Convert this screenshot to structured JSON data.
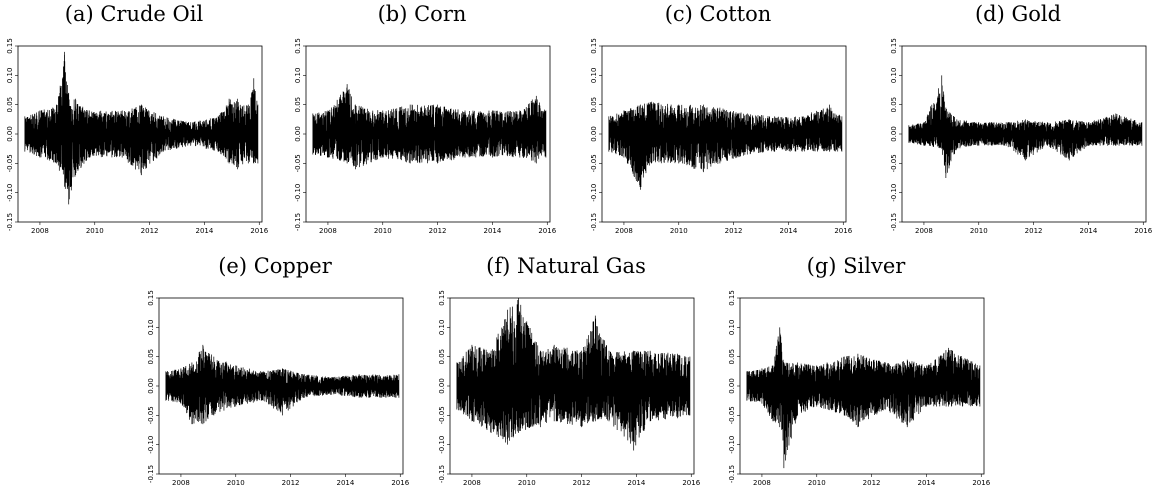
{
  "page": {
    "background": "#ffffff",
    "line_color": "#000000"
  },
  "chart_data": [
    {
      "type": "line",
      "title": "(a) Crude Oil",
      "xlabel": "",
      "ylabel": "",
      "xlim": [
        2007.2,
        2016.1
      ],
      "ylim": [
        -0.15,
        0.15
      ],
      "grid": false,
      "x_ticks": [
        "2008",
        "2010",
        "2012",
        "2014",
        "2016"
      ],
      "y_ticks": [
        "0.15",
        "0.10",
        "0.05",
        "0.00",
        "-0.05",
        "-0.10",
        "-0.15"
      ],
      "series": [
        {
          "x_range": [
            2007.45,
            2015.95
          ],
          "envelope": [
            [
              2007.45,
              0.03,
              -0.03
            ],
            [
              2008.0,
              0.04,
              -0.04
            ],
            [
              2008.6,
              0.05,
              -0.05
            ],
            [
              2008.9,
              0.14,
              -0.09
            ],
            [
              2009.05,
              0.07,
              -0.12
            ],
            [
              2009.3,
              0.06,
              -0.07
            ],
            [
              2009.8,
              0.04,
              -0.04
            ],
            [
              2011.0,
              0.04,
              -0.04
            ],
            [
              2011.7,
              0.05,
              -0.07
            ],
            [
              2012.5,
              0.03,
              -0.03
            ],
            [
              2013.5,
              0.02,
              -0.02
            ],
            [
              2014.5,
              0.03,
              -0.03
            ],
            [
              2014.9,
              0.06,
              -0.05
            ],
            [
              2015.2,
              0.06,
              -0.06
            ],
            [
              2015.6,
              0.05,
              -0.05
            ],
            [
              2015.8,
              0.095,
              -0.05
            ],
            [
              2015.95,
              0.05,
              -0.05
            ]
          ]
        }
      ]
    },
    {
      "type": "line",
      "title": "(b) Corn",
      "xlabel": "",
      "ylabel": "",
      "xlim": [
        2007.2,
        2016.1
      ],
      "ylim": [
        -0.15,
        0.15
      ],
      "grid": false,
      "x_ticks": [
        "2008",
        "2010",
        "2012",
        "2014",
        "2016"
      ],
      "y_ticks": [
        "0.15",
        "0.10",
        "0.05",
        "0.00",
        "-0.05",
        "-0.10",
        "-0.15"
      ],
      "series": [
        {
          "x_range": [
            2007.45,
            2015.95
          ],
          "envelope": [
            [
              2007.45,
              0.035,
              -0.035
            ],
            [
              2008.0,
              0.04,
              -0.04
            ],
            [
              2008.7,
              0.085,
              -0.05
            ],
            [
              2009.0,
              0.05,
              -0.06
            ],
            [
              2010.0,
              0.04,
              -0.04
            ],
            [
              2011.0,
              0.05,
              -0.05
            ],
            [
              2012.0,
              0.05,
              -0.05
            ],
            [
              2013.0,
              0.04,
              -0.04
            ],
            [
              2014.0,
              0.04,
              -0.04
            ],
            [
              2015.0,
              0.04,
              -0.04
            ],
            [
              2015.6,
              0.065,
              -0.05
            ],
            [
              2015.95,
              0.04,
              -0.04
            ]
          ]
        }
      ]
    },
    {
      "type": "line",
      "title": "(c) Cotton",
      "xlabel": "",
      "ylabel": "",
      "xlim": [
        2007.2,
        2016.1
      ],
      "ylim": [
        -0.15,
        0.15
      ],
      "grid": false,
      "x_ticks": [
        "2008",
        "2010",
        "2012",
        "2014",
        "2016"
      ],
      "y_ticks": [
        "0.15",
        "0.10",
        "0.05",
        "0.00",
        "-0.05",
        "-0.10",
        "-0.15"
      ],
      "series": [
        {
          "x_range": [
            2007.45,
            2015.95
          ],
          "envelope": [
            [
              2007.45,
              0.03,
              -0.03
            ],
            [
              2008.0,
              0.04,
              -0.04
            ],
            [
              2008.6,
              0.05,
              -0.095
            ],
            [
              2009.0,
              0.055,
              -0.05
            ],
            [
              2010.0,
              0.05,
              -0.05
            ],
            [
              2010.9,
              0.05,
              -0.065
            ],
            [
              2011.5,
              0.045,
              -0.05
            ],
            [
              2012.5,
              0.035,
              -0.035
            ],
            [
              2013.5,
              0.03,
              -0.03
            ],
            [
              2014.5,
              0.03,
              -0.03
            ],
            [
              2015.5,
              0.05,
              -0.03
            ],
            [
              2015.95,
              0.03,
              -0.03
            ]
          ]
        }
      ]
    },
    {
      "type": "line",
      "title": "(d) Gold",
      "xlabel": "",
      "ylabel": "",
      "xlim": [
        2007.2,
        2016.1
      ],
      "ylim": [
        -0.15,
        0.15
      ],
      "grid": false,
      "x_ticks": [
        "2008",
        "2010",
        "2012",
        "2014",
        "2016"
      ],
      "y_ticks": [
        "0.15",
        "0.10",
        "0.05",
        "0.00",
        "-0.05",
        "-0.10",
        "-0.15"
      ],
      "series": [
        {
          "x_range": [
            2007.45,
            2015.95
          ],
          "envelope": [
            [
              2007.45,
              0.015,
              -0.015
            ],
            [
              2008.0,
              0.02,
              -0.02
            ],
            [
              2008.65,
              0.1,
              -0.025
            ],
            [
              2008.8,
              0.045,
              -0.075
            ],
            [
              2009.2,
              0.025,
              -0.025
            ],
            [
              2010.0,
              0.02,
              -0.02
            ],
            [
              2011.0,
              0.02,
              -0.02
            ],
            [
              2011.7,
              0.025,
              -0.045
            ],
            [
              2012.5,
              0.02,
              -0.02
            ],
            [
              2013.3,
              0.025,
              -0.045
            ],
            [
              2014.0,
              0.02,
              -0.02
            ],
            [
              2015.0,
              0.035,
              -0.02
            ],
            [
              2015.95,
              0.02,
              -0.02
            ]
          ]
        }
      ]
    },
    {
      "type": "line",
      "title": "(e) Copper",
      "xlabel": "",
      "ylabel": "",
      "xlim": [
        2007.2,
        2016.1
      ],
      "ylim": [
        -0.15,
        0.15
      ],
      "grid": false,
      "x_ticks": [
        "2008",
        "2010",
        "2012",
        "2014",
        "2016"
      ],
      "y_ticks": [
        "0.15",
        "0.10",
        "0.05",
        "0.00",
        "-0.05",
        "-0.10",
        "-0.15"
      ],
      "series": [
        {
          "x_range": [
            2007.45,
            2015.95
          ],
          "envelope": [
            [
              2007.45,
              0.025,
              -0.025
            ],
            [
              2008.0,
              0.03,
              -0.03
            ],
            [
              2008.4,
              0.04,
              -0.065
            ],
            [
              2008.8,
              0.07,
              -0.065
            ],
            [
              2009.2,
              0.05,
              -0.05
            ],
            [
              2010.0,
              0.035,
              -0.035
            ],
            [
              2011.0,
              0.025,
              -0.025
            ],
            [
              2011.7,
              0.03,
              -0.05
            ],
            [
              2012.5,
              0.02,
              -0.02
            ],
            [
              2013.5,
              0.015,
              -0.015
            ],
            [
              2014.5,
              0.02,
              -0.02
            ],
            [
              2015.95,
              0.02,
              -0.02
            ]
          ]
        }
      ]
    },
    {
      "type": "line",
      "title": "(f) Natural Gas",
      "xlabel": "",
      "ylabel": "",
      "xlim": [
        2007.2,
        2016.1
      ],
      "ylim": [
        -0.15,
        0.15
      ],
      "grid": false,
      "x_ticks": [
        "2008",
        "2010",
        "2012",
        "2014",
        "2016"
      ],
      "y_ticks": [
        "0.15",
        "0.10",
        "0.05",
        "0.00",
        "-0.05",
        "-0.10",
        "-0.15"
      ],
      "series": [
        {
          "x_range": [
            2007.45,
            2015.95
          ],
          "envelope": [
            [
              2007.45,
              0.04,
              -0.04
            ],
            [
              2008.0,
              0.07,
              -0.06
            ],
            [
              2008.7,
              0.06,
              -0.08
            ],
            [
              2009.3,
              0.13,
              -0.1
            ],
            [
              2009.7,
              0.15,
              -0.08
            ],
            [
              2010.5,
              0.06,
              -0.07
            ],
            [
              2011.0,
              0.07,
              -0.06
            ],
            [
              2012.0,
              0.06,
              -0.07
            ],
            [
              2012.5,
              0.12,
              -0.06
            ],
            [
              2013.0,
              0.06,
              -0.06
            ],
            [
              2013.9,
              0.06,
              -0.11
            ],
            [
              2014.5,
              0.06,
              -0.06
            ],
            [
              2015.5,
              0.055,
              -0.055
            ],
            [
              2015.95,
              0.05,
              -0.05
            ]
          ]
        }
      ]
    },
    {
      "type": "line",
      "title": "(g) Silver",
      "xlabel": "",
      "ylabel": "",
      "xlim": [
        2007.2,
        2016.1
      ],
      "ylim": [
        -0.15,
        0.15
      ],
      "grid": false,
      "x_ticks": [
        "2008",
        "2010",
        "2012",
        "2014",
        "2016"
      ],
      "y_ticks": [
        "0.15",
        "0.10",
        "0.05",
        "0.00",
        "-0.05",
        "-0.10",
        "-0.15"
      ],
      "series": [
        {
          "x_range": [
            2007.45,
            2015.95
          ],
          "envelope": [
            [
              2007.45,
              0.025,
              -0.025
            ],
            [
              2008.0,
              0.03,
              -0.03
            ],
            [
              2008.4,
              0.035,
              -0.06
            ],
            [
              2008.65,
              0.1,
              -0.07
            ],
            [
              2008.8,
              0.04,
              -0.14
            ],
            [
              2009.3,
              0.04,
              -0.05
            ],
            [
              2010.0,
              0.035,
              -0.035
            ],
            [
              2011.0,
              0.05,
              -0.05
            ],
            [
              2011.5,
              0.055,
              -0.07
            ],
            [
              2012.5,
              0.04,
              -0.04
            ],
            [
              2013.3,
              0.045,
              -0.07
            ],
            [
              2014.0,
              0.035,
              -0.035
            ],
            [
              2014.8,
              0.065,
              -0.035
            ],
            [
              2015.95,
              0.035,
              -0.035
            ]
          ]
        }
      ]
    }
  ]
}
